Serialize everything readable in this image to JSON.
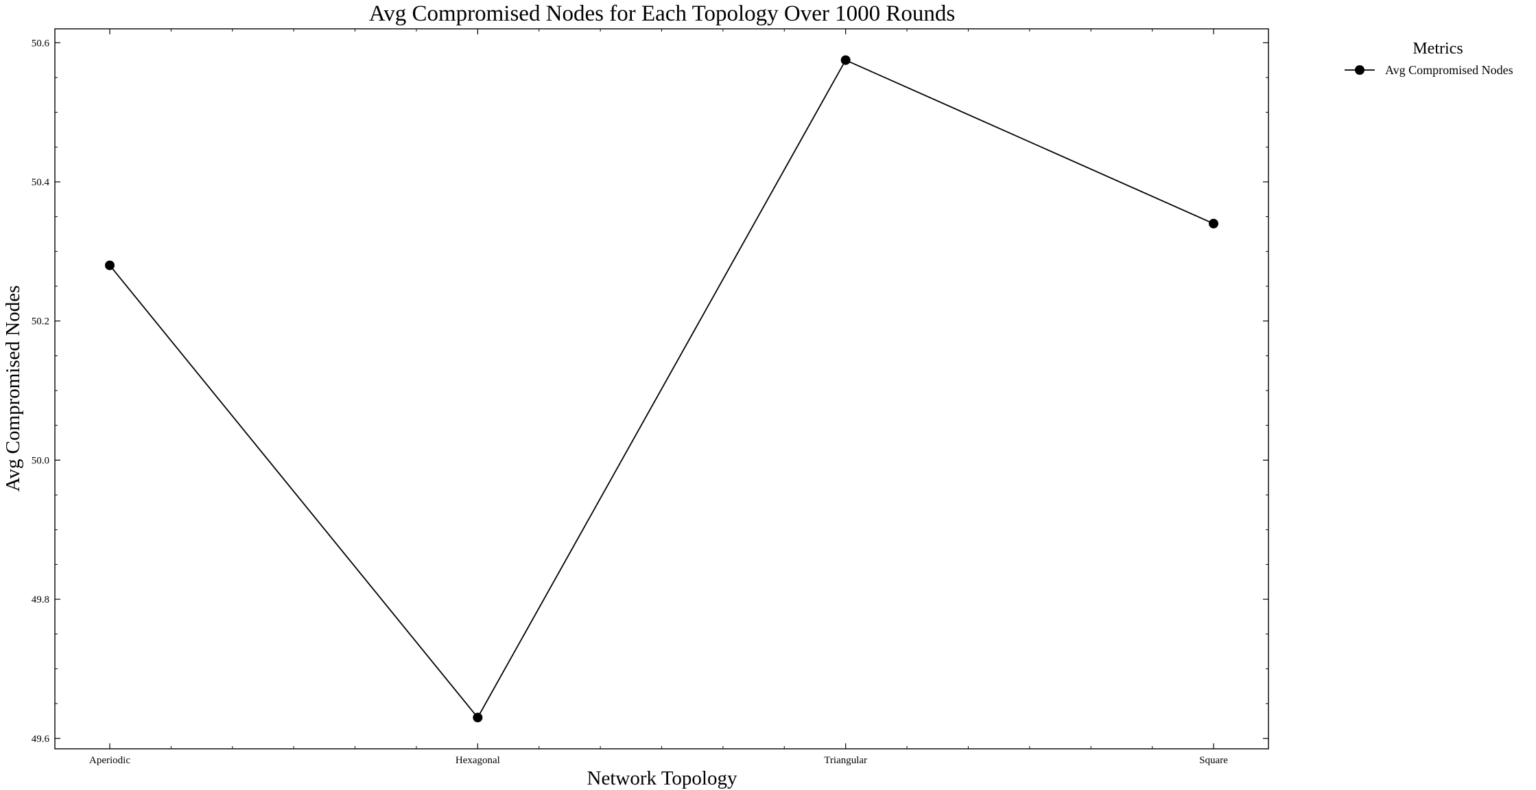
{
  "chart_data": {
    "type": "line",
    "title": "Avg Compromised Nodes for Each Topology Over 1000 Rounds",
    "xlabel": "Network Topology",
    "ylabel": "Avg Compromised Nodes",
    "categories": [
      "Aperiodic",
      "Hexagonal",
      "Triangular",
      "Square"
    ],
    "series": [
      {
        "name": "Avg Compromised Nodes",
        "values": [
          50.28,
          49.63,
          50.575,
          50.34
        ],
        "color": "#000000",
        "marker": "circle"
      }
    ],
    "ylim": [
      49.585,
      50.62
    ],
    "yticks": [
      "49.6",
      "49.8",
      "50.0",
      "50.2",
      "50.4",
      "50.6"
    ],
    "grid": false,
    "legend": {
      "title": "Metrics",
      "position": "outside-top-right"
    }
  }
}
